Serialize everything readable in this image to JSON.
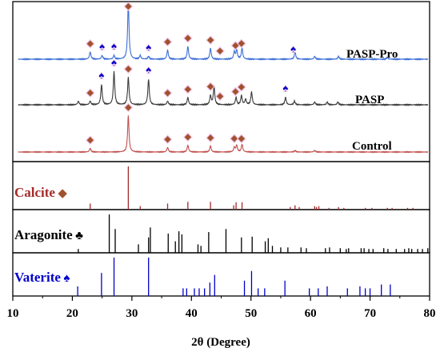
{
  "chart_data": {
    "type": "line",
    "xlabel": "2θ (Degree)",
    "xlim": [
      10,
      80
    ],
    "x_ticks": [
      "10",
      "20",
      "30",
      "40",
      "50",
      "60",
      "70",
      "80"
    ],
    "legend_markers": [
      {
        "phase": "Calcite",
        "symbol": "◆",
        "color": "#a0522d"
      },
      {
        "phase": "Aragonite",
        "symbol": "♣",
        "color": "#000000"
      },
      {
        "phase": "Vaterite",
        "symbol": "♠",
        "color": "#0000cc"
      }
    ],
    "series": [
      {
        "name": "PASP-Pro",
        "color": "#3d6fd6",
        "baseline": 0.0,
        "peaks": [
          [
            23.0,
            8
          ],
          [
            25.0,
            4
          ],
          [
            27.0,
            4
          ],
          [
            29.4,
            62
          ],
          [
            31.4,
            4
          ],
          [
            32.8,
            3
          ],
          [
            36.0,
            10
          ],
          [
            39.4,
            14
          ],
          [
            43.2,
            12
          ],
          [
            47.2,
            8
          ],
          [
            47.6,
            10
          ],
          [
            48.5,
            12
          ],
          [
            57.4,
            8
          ],
          [
            60.7,
            3
          ],
          [
            64.7,
            3
          ],
          [
            72.9,
            2
          ]
        ],
        "calcite_markers": [
          23.0,
          29.4,
          36.0,
          39.4,
          43.2,
          44.8,
          47.4,
          48.4
        ],
        "vaterite_markers": [
          25.0,
          27.0,
          32.8,
          57.1
        ]
      },
      {
        "name": "PASP",
        "color": "#3a3a3a",
        "baseline": 0.0,
        "peaks": [
          [
            21.0,
            4
          ],
          [
            23.0,
            4
          ],
          [
            24.9,
            22
          ],
          [
            27.0,
            36
          ],
          [
            29.4,
            30
          ],
          [
            32.8,
            28
          ],
          [
            36.0,
            4
          ],
          [
            39.4,
            8
          ],
          [
            43.2,
            10
          ],
          [
            43.8,
            20
          ],
          [
            47.5,
            8
          ],
          [
            48.4,
            10
          ],
          [
            49.1,
            6
          ],
          [
            50.1,
            14
          ],
          [
            55.8,
            8
          ],
          [
            57.3,
            4
          ],
          [
            60.7,
            3
          ],
          [
            62.8,
            3
          ],
          [
            64.6,
            3
          ]
        ],
        "calcite_markers": [
          23.0,
          29.4,
          36.0,
          39.4,
          43.2,
          44.8,
          47.4,
          48.4
        ],
        "vaterite_markers": [
          24.9,
          27.0,
          32.8,
          55.8
        ]
      },
      {
        "name": "Control",
        "color": "#c0504d",
        "baseline": 0.0,
        "peaks": [
          [
            23.0,
            5
          ],
          [
            29.4,
            48
          ],
          [
            36.0,
            6
          ],
          [
            39.4,
            9
          ],
          [
            43.2,
            8
          ],
          [
            47.2,
            6
          ],
          [
            47.6,
            9
          ],
          [
            48.5,
            10
          ],
          [
            57.4,
            2
          ],
          [
            60.7,
            2
          ]
        ],
        "calcite_markers": [
          23.0,
          29.4,
          36.0,
          39.4,
          43.2,
          47.2,
          48.4
        ],
        "vaterite_markers": []
      }
    ],
    "references": [
      {
        "name": "Calcite",
        "color": "#a52a2a",
        "sticks": [
          [
            23.0,
            14
          ],
          [
            29.4,
            100
          ],
          [
            31.4,
            8
          ],
          [
            36.0,
            14
          ],
          [
            39.4,
            18
          ],
          [
            43.2,
            18
          ],
          [
            47.1,
            10
          ],
          [
            47.5,
            17
          ],
          [
            48.5,
            17
          ],
          [
            56.6,
            6
          ],
          [
            57.4,
            10
          ],
          [
            58.1,
            6
          ],
          [
            60.7,
            8
          ],
          [
            61.0,
            6
          ],
          [
            61.4,
            8
          ],
          [
            63.1,
            4
          ],
          [
            64.7,
            6
          ],
          [
            65.6,
            4
          ],
          [
            69.2,
            4
          ],
          [
            70.3,
            4
          ],
          [
            72.9,
            4
          ],
          [
            73.7,
            4
          ],
          [
            76.3,
            4
          ],
          [
            77.2,
            4
          ]
        ]
      },
      {
        "name": "Aragonite",
        "color": "#000000",
        "sticks": [
          [
            21.0,
            10
          ],
          [
            26.2,
            100
          ],
          [
            27.2,
            62
          ],
          [
            31.1,
            22
          ],
          [
            32.8,
            40
          ],
          [
            33.1,
            66
          ],
          [
            36.1,
            50
          ],
          [
            37.3,
            30
          ],
          [
            37.9,
            56
          ],
          [
            38.4,
            48
          ],
          [
            41.1,
            22
          ],
          [
            41.6,
            18
          ],
          [
            42.9,
            54
          ],
          [
            45.8,
            62
          ],
          [
            48.4,
            40
          ],
          [
            50.2,
            42
          ],
          [
            52.4,
            30
          ],
          [
            52.9,
            38
          ],
          [
            53.6,
            18
          ],
          [
            55.0,
            14
          ],
          [
            56.2,
            14
          ],
          [
            58.4,
            14
          ],
          [
            59.3,
            12
          ],
          [
            62.5,
            12
          ],
          [
            63.2,
            14
          ],
          [
            65.0,
            12
          ],
          [
            66.0,
            10
          ],
          [
            66.4,
            12
          ],
          [
            68.5,
            12
          ],
          [
            69.0,
            12
          ],
          [
            69.8,
            10
          ],
          [
            70.5,
            10
          ],
          [
            72.3,
            12
          ],
          [
            73.0,
            10
          ],
          [
            74.4,
            10
          ],
          [
            75.8,
            10
          ],
          [
            76.5,
            12
          ],
          [
            77.0,
            10
          ],
          [
            78.0,
            10
          ],
          [
            78.8,
            10
          ],
          [
            79.7,
            12
          ]
        ]
      },
      {
        "name": "Vaterite",
        "color": "#0000cc",
        "sticks": [
          [
            20.9,
            25
          ],
          [
            24.9,
            60
          ],
          [
            27.0,
            100
          ],
          [
            32.8,
            100
          ],
          [
            38.6,
            20
          ],
          [
            39.2,
            20
          ],
          [
            40.5,
            20
          ],
          [
            41.3,
            20
          ],
          [
            42.2,
            20
          ],
          [
            43.1,
            35
          ],
          [
            43.9,
            55
          ],
          [
            48.9,
            40
          ],
          [
            50.1,
            65
          ],
          [
            51.2,
            20
          ],
          [
            52.3,
            20
          ],
          [
            55.7,
            40
          ],
          [
            59.8,
            20
          ],
          [
            61.3,
            20
          ],
          [
            62.8,
            25
          ],
          [
            66.2,
            20
          ],
          [
            68.3,
            25
          ],
          [
            69.2,
            20
          ],
          [
            70.0,
            20
          ],
          [
            71.9,
            30
          ],
          [
            73.4,
            30
          ]
        ]
      }
    ]
  }
}
